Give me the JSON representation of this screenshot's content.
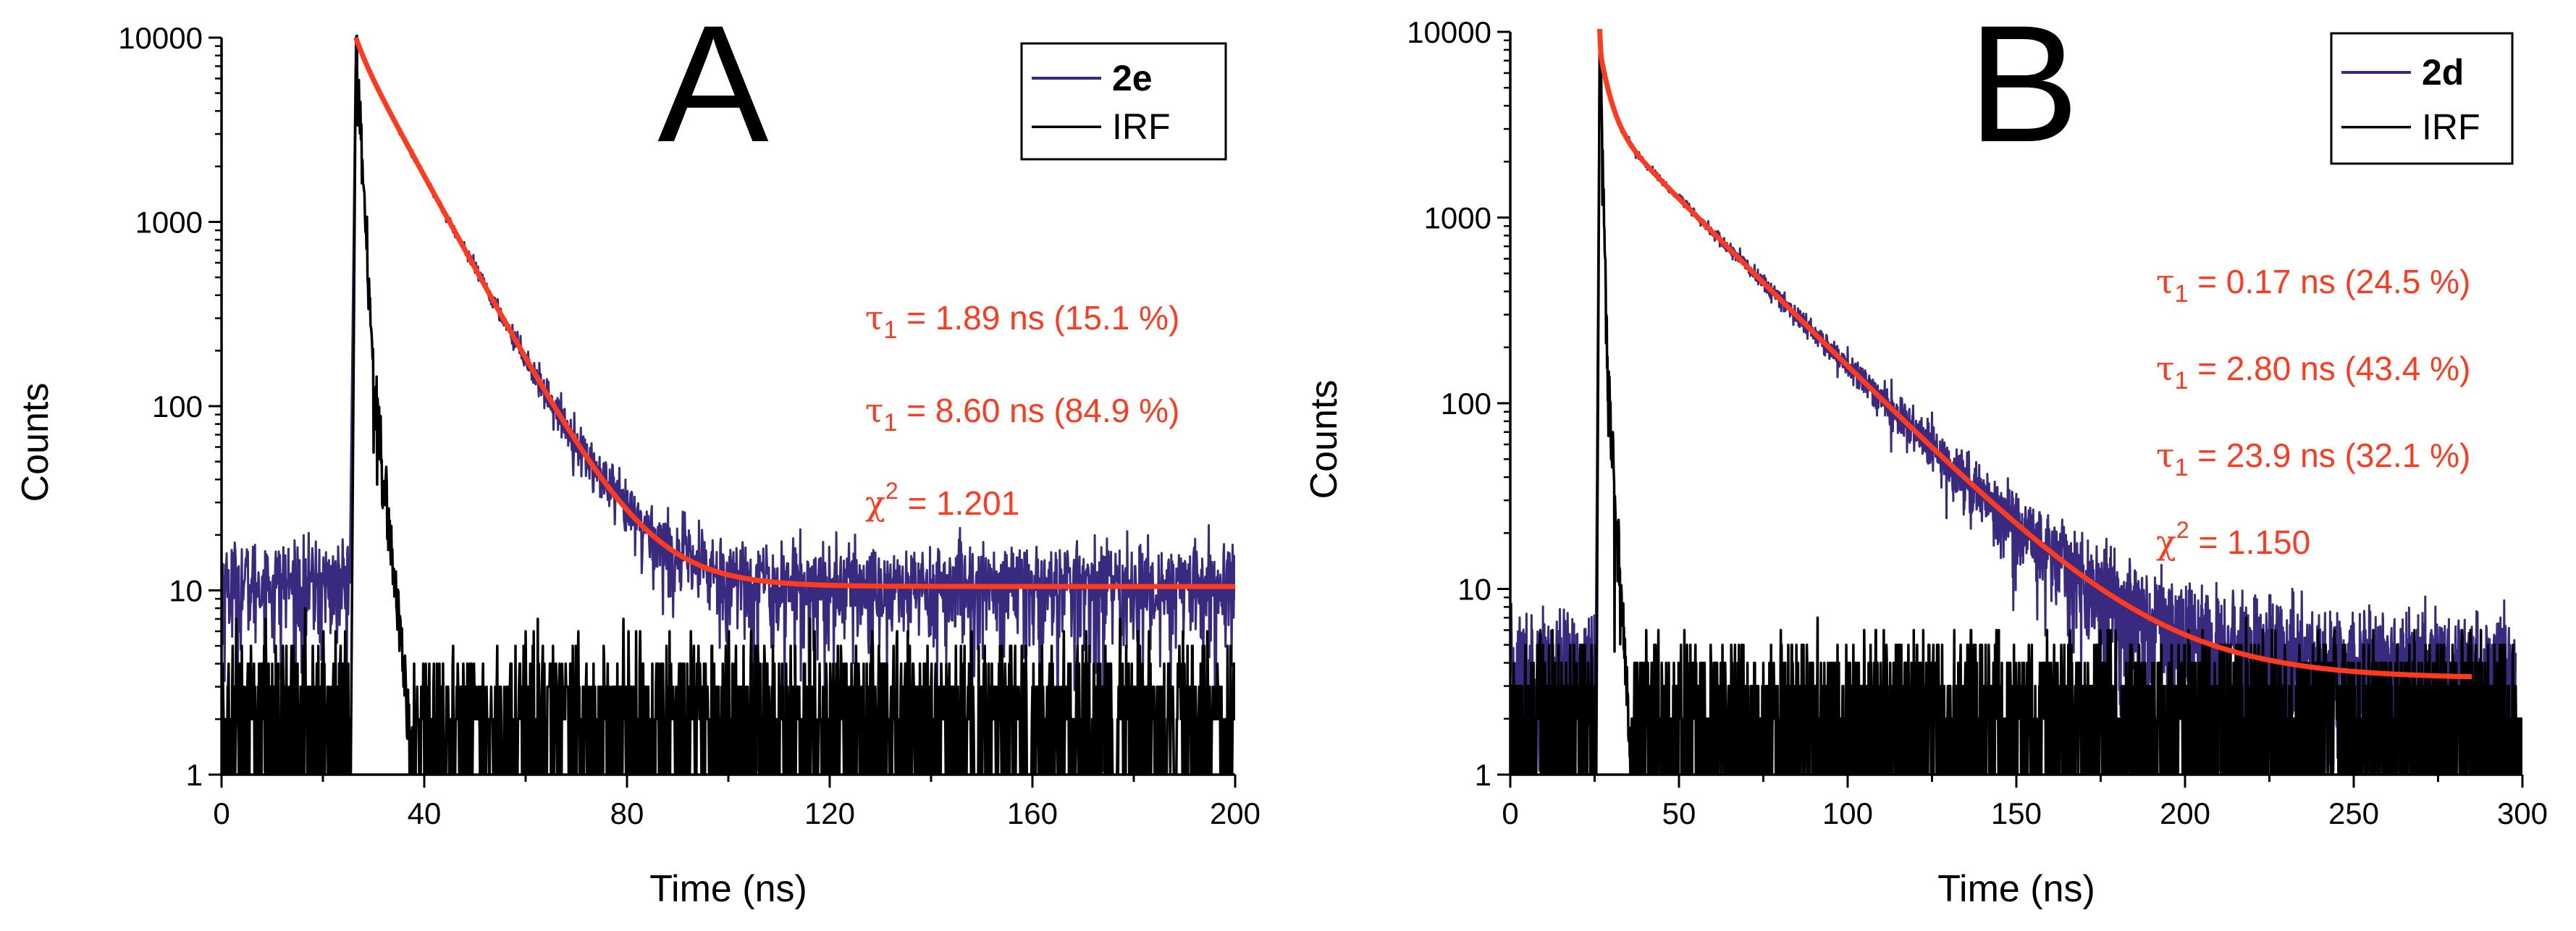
{
  "chart_data": [
    {
      "id": "A",
      "type": "line",
      "panel_label": "A",
      "xlabel": "Time (ns)",
      "ylabel": "Counts",
      "yscale": "log",
      "xlim": [
        0,
        200
      ],
      "ylim": [
        1,
        10000
      ],
      "x_ticks": [
        "0",
        "40",
        "80",
        "120",
        "160",
        "200"
      ],
      "y_ticks": [
        "1",
        "10",
        "100",
        "1000",
        "10000"
      ],
      "legend": [
        {
          "label": "2e",
          "color": "#3a2a7f",
          "bold": true
        },
        {
          "label": "IRF",
          "color": "#000000",
          "bold": false
        }
      ],
      "legend_position": "top-right",
      "series": [
        {
          "name": "2e",
          "kind": "decay-noisy",
          "color": "#3a2a7f",
          "peak_time": 26.5,
          "peak_counts": 10000,
          "baseline": 10.5,
          "pre_rise_level": 11,
          "x_end": 200,
          "components": [
            {
              "tau": 1.89,
              "weight": 0.151
            },
            {
              "tau": 8.6,
              "weight": 0.849
            }
          ]
        },
        {
          "name": "IRF",
          "kind": "irf",
          "color": "#000000",
          "rise_time": 25.5,
          "peak_time": 26.5,
          "peak_counts": 9000,
          "shoulder_time": 30,
          "shoulder_counts": 150,
          "end_time": 38,
          "noise_level": 2,
          "x_end": 200
        },
        {
          "name": "fit",
          "kind": "fit",
          "color": "#ff3b1f",
          "peak_time": 26.5,
          "peak_counts": 10000,
          "baseline": 10.5,
          "x_end": 200,
          "components": [
            {
              "tau": 1.89,
              "weight": 0.151
            },
            {
              "tau": 8.6,
              "weight": 0.849
            }
          ]
        }
      ],
      "annotations": [
        {
          "symbol": "τ",
          "sub": "1",
          "sup": "",
          "text": " = 1.89 ns (15.1 %)"
        },
        {
          "symbol": "τ",
          "sub": "1",
          "sup": "",
          "text": " = 8.60 ns (84.9 %)"
        },
        {
          "symbol": "χ",
          "sub": "",
          "sup": "2",
          "text": " = 1.201"
        }
      ]
    },
    {
      "id": "B",
      "type": "line",
      "panel_label": "B",
      "xlabel": "Time (ns)",
      "ylabel": "Counts",
      "yscale": "log",
      "xlim": [
        0,
        300
      ],
      "ylim": [
        1,
        10000
      ],
      "x_ticks": [
        "0",
        "50",
        "100",
        "150",
        "200",
        "250",
        "300"
      ],
      "y_ticks": [
        "1",
        "10",
        "100",
        "1000",
        "10000"
      ],
      "legend": [
        {
          "label": "2d",
          "color": "#3a2a7f",
          "bold": true
        },
        {
          "label": "IRF",
          "color": "#000000",
          "bold": false
        }
      ],
      "legend_position": "top-right",
      "series": [
        {
          "name": "2d",
          "kind": "decay-noisy",
          "color": "#3a2a7f",
          "peak_time": 26.5,
          "peak_counts": 10500,
          "baseline": 3.3,
          "pre_rise_level": 3.5,
          "x_end": 298,
          "components": [
            {
              "tau": 0.17,
              "weight": 0.245
            },
            {
              "tau": 2.8,
              "weight": 0.434
            },
            {
              "tau": 23.9,
              "weight": 0.321
            }
          ]
        },
        {
          "name": "IRF",
          "kind": "irf",
          "color": "#000000",
          "rise_time": 25.5,
          "peak_time": 26.5,
          "peak_counts": 9500,
          "shoulder_time": 29,
          "shoulder_counts": 120,
          "end_time": 36,
          "noise_level": 2,
          "x_end": 300
        },
        {
          "name": "fit",
          "kind": "fit",
          "color": "#ff3b1f",
          "peak_time": 26.5,
          "peak_counts": 10500,
          "baseline": 3.3,
          "x_end": 285,
          "components": [
            {
              "tau": 0.17,
              "weight": 0.245
            },
            {
              "tau": 2.8,
              "weight": 0.434
            },
            {
              "tau": 23.9,
              "weight": 0.321
            }
          ]
        }
      ],
      "annotations": [
        {
          "symbol": "τ",
          "sub": "1",
          "sup": "",
          "text": " = 0.17 ns (24.5 %)"
        },
        {
          "symbol": "τ",
          "sub": "1",
          "sup": "",
          "text": " = 2.80 ns (43.4 %)"
        },
        {
          "symbol": "τ",
          "sub": "1",
          "sup": "",
          "text": " = 23.9 ns (32.1 %)"
        },
        {
          "symbol": "χ",
          "sub": "",
          "sup": "2",
          "text": " = 1.150"
        }
      ]
    }
  ]
}
